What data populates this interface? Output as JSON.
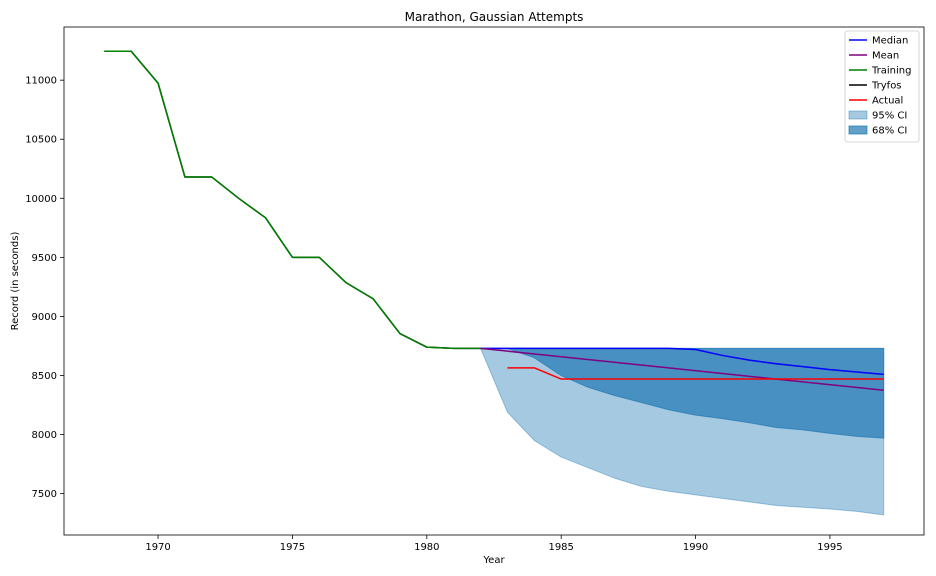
{
  "chart_data": {
    "type": "line",
    "title": "Marathon, Gaussian Attempts",
    "xlabel": "Year",
    "ylabel": "Record (in seconds)",
    "xlim": [
      1966.5,
      1998.5
    ],
    "ylim": [
      7150,
      11450
    ],
    "xticks": [
      1970,
      1975,
      1980,
      1985,
      1990,
      1995
    ],
    "yticks": [
      7500,
      8000,
      8500,
      9000,
      9500,
      10000,
      10500,
      11000
    ],
    "grid": false,
    "legend_position": "top-right",
    "colors": {
      "median": "#0000ff",
      "mean": "#800080",
      "training": "#008000",
      "tryfos": "#000000",
      "actual": "#ff0000",
      "ci95": "#1f77b4",
      "ci68": "#1f77b4"
    },
    "series": [
      {
        "name": "Training",
        "x": [
          1968,
          1969,
          1970,
          1971,
          1972,
          1973,
          1974,
          1975,
          1976,
          1977,
          1978,
          1979,
          1980,
          1981,
          1982
        ],
        "values": [
          11245,
          11245,
          10975,
          10180,
          10180,
          10000,
          9835,
          9500,
          9500,
          9285,
          9150,
          8855,
          8740,
          8730,
          8730
        ]
      },
      {
        "name": "Tryfos",
        "x": [
          1968,
          1969,
          1970,
          1971,
          1972,
          1973,
          1974,
          1975,
          1976,
          1977,
          1978,
          1979,
          1980,
          1981,
          1982
        ],
        "values": [
          11245,
          11245,
          10975,
          10180,
          10180,
          10000,
          9835,
          9500,
          9500,
          9285,
          9150,
          8855,
          8740,
          8730,
          8730
        ]
      },
      {
        "name": "Median",
        "x": [
          1982,
          1983,
          1984,
          1985,
          1986,
          1987,
          1988,
          1989,
          1990,
          1991,
          1992,
          1993,
          1994,
          1995,
          1996,
          1997
        ],
        "values": [
          8730,
          8730,
          8730,
          8730,
          8730,
          8730,
          8730,
          8730,
          8720,
          8670,
          8630,
          8600,
          8575,
          8550,
          8530,
          8510
        ]
      },
      {
        "name": "Mean",
        "x": [
          1982,
          1997
        ],
        "values": [
          8730,
          8375
        ]
      },
      {
        "name": "Actual",
        "x": [
          1983,
          1984,
          1985,
          1986,
          1987,
          1988,
          1989,
          1990,
          1991,
          1992,
          1993,
          1994,
          1995,
          1996,
          1997
        ],
        "values": [
          8565,
          8565,
          8470,
          8470,
          8470,
          8470,
          8470,
          8470,
          8470,
          8470,
          8470,
          8470,
          8470,
          8470,
          8470
        ]
      }
    ],
    "bands": [
      {
        "name": "95% CI",
        "alpha": 0.4,
        "x": [
          1982,
          1983,
          1984,
          1985,
          1986,
          1987,
          1988,
          1989,
          1990,
          1991,
          1992,
          1993,
          1994,
          1995,
          1996,
          1997
        ],
        "upper": [
          8730,
          8730,
          8730,
          8730,
          8730,
          8730,
          8730,
          8730,
          8730,
          8730,
          8730,
          8730,
          8730,
          8730,
          8730,
          8730
        ],
        "lower": [
          8730,
          8190,
          7950,
          7810,
          7720,
          7630,
          7560,
          7520,
          7490,
          7460,
          7430,
          7400,
          7385,
          7370,
          7350,
          7320
        ]
      },
      {
        "name": "68% CI",
        "alpha": 0.7,
        "x": [
          1982,
          1983,
          1984,
          1985,
          1986,
          1987,
          1988,
          1989,
          1990,
          1991,
          1992,
          1993,
          1994,
          1995,
          1996,
          1997
        ],
        "upper": [
          8730,
          8730,
          8730,
          8730,
          8730,
          8730,
          8730,
          8730,
          8730,
          8730,
          8730,
          8730,
          8730,
          8730,
          8730,
          8730
        ],
        "lower": [
          8730,
          8730,
          8650,
          8500,
          8400,
          8330,
          8270,
          8210,
          8165,
          8135,
          8100,
          8060,
          8040,
          8010,
          7985,
          7970
        ]
      }
    ],
    "legend": [
      {
        "label": "Median",
        "kind": "line",
        "color": "#0000ff"
      },
      {
        "label": "Mean",
        "kind": "line",
        "color": "#800080"
      },
      {
        "label": "Training",
        "kind": "line",
        "color": "#008000"
      },
      {
        "label": "Tryfos",
        "kind": "line",
        "color": "#000000"
      },
      {
        "label": "Actual",
        "kind": "line",
        "color": "#ff0000"
      },
      {
        "label": "95% CI",
        "kind": "patch",
        "color": "#1f77b4",
        "alpha": 0.4
      },
      {
        "label": "68% CI",
        "kind": "patch",
        "color": "#1f77b4",
        "alpha": 0.7
      }
    ]
  }
}
